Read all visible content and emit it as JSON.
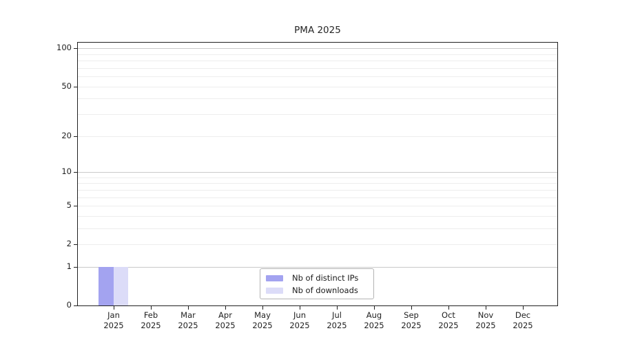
{
  "title": "PMA 2025",
  "colors": {
    "background": "#ffffff",
    "frame": "#1f1f1f",
    "grid_major": "#c9c9c9",
    "grid_minor": "#ededed",
    "text": "#1f1f1f",
    "legend_border": "#b3b3b3"
  },
  "chart_data": {
    "type": "bar",
    "title": "PMA 2025",
    "months": [
      "Jan",
      "Feb",
      "Mar",
      "Apr",
      "May",
      "Jun",
      "Jul",
      "Aug",
      "Sep",
      "Oct",
      "Nov",
      "Dec"
    ],
    "year": "2025",
    "series": [
      {
        "name": "Nb of distinct IPs",
        "color": "#a3a3f0",
        "values": [
          1,
          0,
          0,
          0,
          0,
          0,
          0,
          0,
          0,
          0,
          0,
          0
        ]
      },
      {
        "name": "Nb of downloads",
        "color": "#dcdcf8",
        "values": [
          1,
          0,
          0,
          0,
          0,
          0,
          0,
          0,
          0,
          0,
          0,
          0
        ]
      }
    ],
    "y_scale": "log1p",
    "ylim": [
      0,
      100
    ],
    "y_axis_ticks": [
      0,
      1,
      2,
      5,
      10,
      20,
      50,
      100
    ],
    "y_gridlines_major": [
      1,
      10,
      100
    ],
    "y_gridlines_minor": [
      2,
      3,
      4,
      5,
      6,
      7,
      8,
      9,
      20,
      30,
      40,
      50,
      60,
      70,
      80,
      90
    ],
    "legend": {
      "position": "bottom-center"
    }
  }
}
